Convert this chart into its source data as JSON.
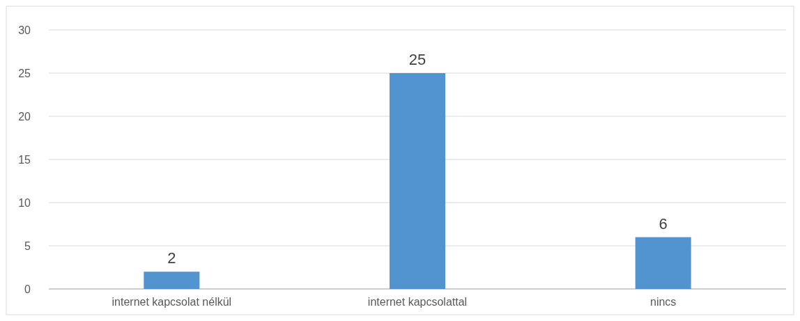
{
  "chart_data": {
    "type": "bar",
    "categories": [
      "internet kapcsolat nélkül",
      "internet kapcsolattal",
      "nincs"
    ],
    "values": [
      2,
      25,
      6
    ],
    "color": "#5294cf",
    "ylim": [
      0,
      30
    ],
    "yticks": [
      0,
      5,
      10,
      15,
      20,
      25,
      30
    ],
    "grid": "y",
    "data_labels": true
  }
}
